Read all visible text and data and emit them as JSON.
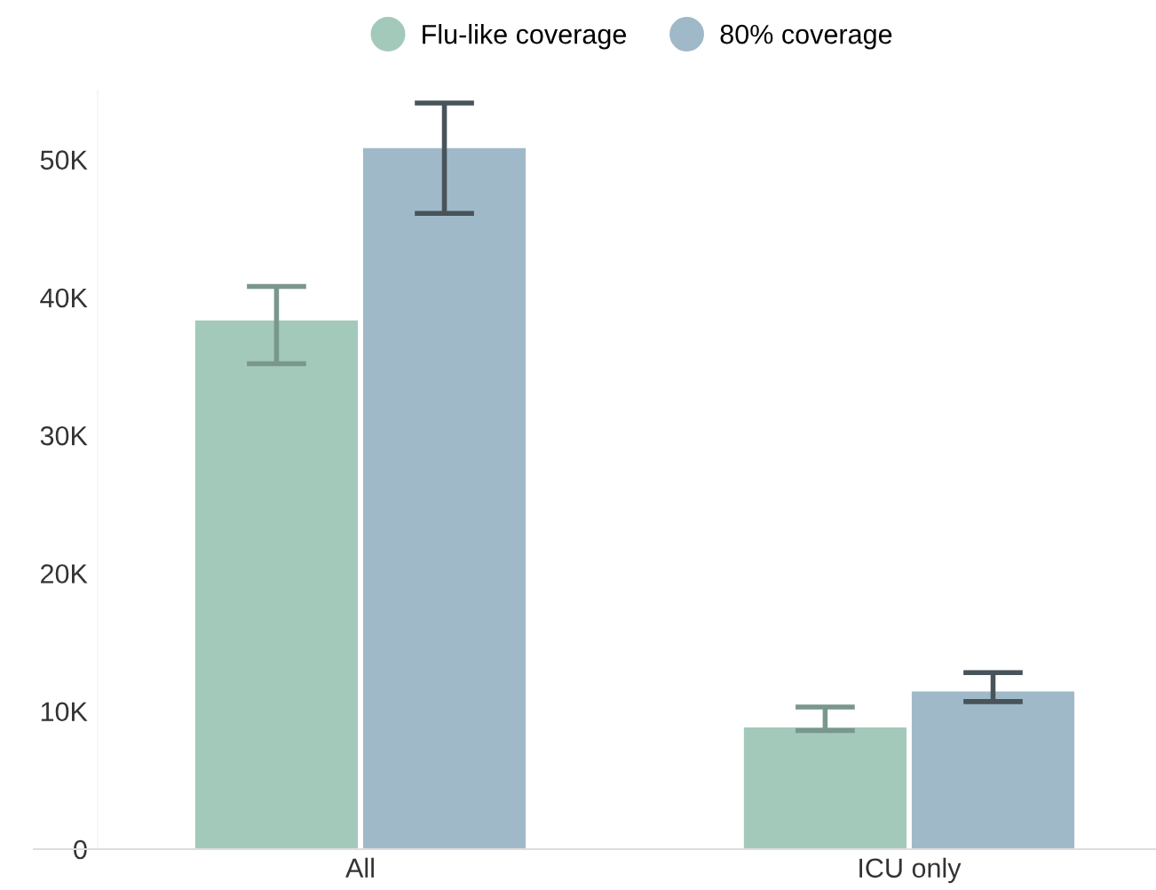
{
  "chart_data": {
    "type": "bar",
    "categories": [
      "All",
      "ICU only"
    ],
    "series": [
      {
        "name": "Flu-like coverage",
        "color": "#a3c9bb",
        "values": [
          38400,
          8900
        ],
        "errors": [
          [
            35200,
            40800
          ],
          [
            8600,
            10300
          ]
        ]
      },
      {
        "name": "80% coverage",
        "color": "#a0b9c8",
        "values": [
          50900,
          11500
        ],
        "errors": [
          [
            46100,
            54100
          ],
          [
            10700,
            12800
          ]
        ]
      }
    ],
    "ylim": [
      0,
      55000
    ],
    "yticks": [
      {
        "value": 0,
        "label": "0"
      },
      {
        "value": 10000,
        "label": "10K"
      },
      {
        "value": 20000,
        "label": "20K"
      },
      {
        "value": 30000,
        "label": "30K"
      },
      {
        "value": 40000,
        "label": "40K"
      },
      {
        "value": 50000,
        "label": "50K"
      }
    ],
    "grid": false,
    "legend": "top"
  }
}
